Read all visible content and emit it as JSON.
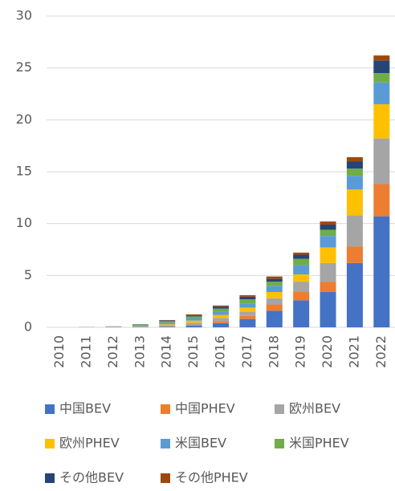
{
  "chart_data": {
    "type": "stacked_bar",
    "categories": [
      "2010",
      "2011",
      "2012",
      "2013",
      "2014",
      "2015",
      "2016",
      "2017",
      "2018",
      "2019",
      "2020",
      "2021",
      "2022"
    ],
    "series": [
      {
        "name": "中国BEV",
        "color": "#4472c4",
        "values": [
          0,
          0,
          0.01,
          0.02,
          0.05,
          0.15,
          0.4,
          0.8,
          1.6,
          2.6,
          3.4,
          6.2,
          10.7
        ]
      },
      {
        "name": "中国PHEV",
        "color": "#ed7d31",
        "values": [
          0,
          0,
          0,
          0.01,
          0.02,
          0.05,
          0.2,
          0.3,
          0.6,
          0.8,
          1.0,
          1.6,
          3.1
        ]
      },
      {
        "name": "欧州BEV",
        "color": "#a5a5a5",
        "values": [
          0,
          0.01,
          0.02,
          0.05,
          0.12,
          0.25,
          0.3,
          0.4,
          0.6,
          1.0,
          1.8,
          3.0,
          4.4
        ]
      },
      {
        "name": "欧州PHEV",
        "color": "#ffc000",
        "values": [
          0,
          0,
          0.01,
          0.03,
          0.1,
          0.2,
          0.3,
          0.4,
          0.6,
          0.7,
          1.5,
          2.5,
          3.3
        ]
      },
      {
        "name": "米国BEV",
        "color": "#5b9bd5",
        "values": [
          0,
          0.02,
          0.03,
          0.08,
          0.15,
          0.2,
          0.3,
          0.4,
          0.6,
          0.9,
          1.1,
          1.3,
          2.1
        ]
      },
      {
        "name": "米国PHEV",
        "color": "#70ad47",
        "values": [
          0,
          0.01,
          0.03,
          0.08,
          0.15,
          0.2,
          0.3,
          0.4,
          0.4,
          0.6,
          0.6,
          0.7,
          0.9
        ]
      },
      {
        "name": "その他BEV",
        "color": "#264478",
        "values": [
          0,
          0,
          0,
          0.02,
          0.08,
          0.1,
          0.2,
          0.25,
          0.3,
          0.4,
          0.5,
          0.7,
          1.2
        ]
      },
      {
        "name": "その他PHEV",
        "color": "#9e480e",
        "values": [
          0,
          0,
          0,
          0.01,
          0.03,
          0.1,
          0.1,
          0.15,
          0.2,
          0.2,
          0.3,
          0.4,
          0.5
        ]
      }
    ],
    "ylim": [
      0,
      30
    ],
    "yticks": [
      0,
      5,
      10,
      15,
      20,
      25,
      30
    ],
    "grid": true,
    "legend": "bottom"
  }
}
